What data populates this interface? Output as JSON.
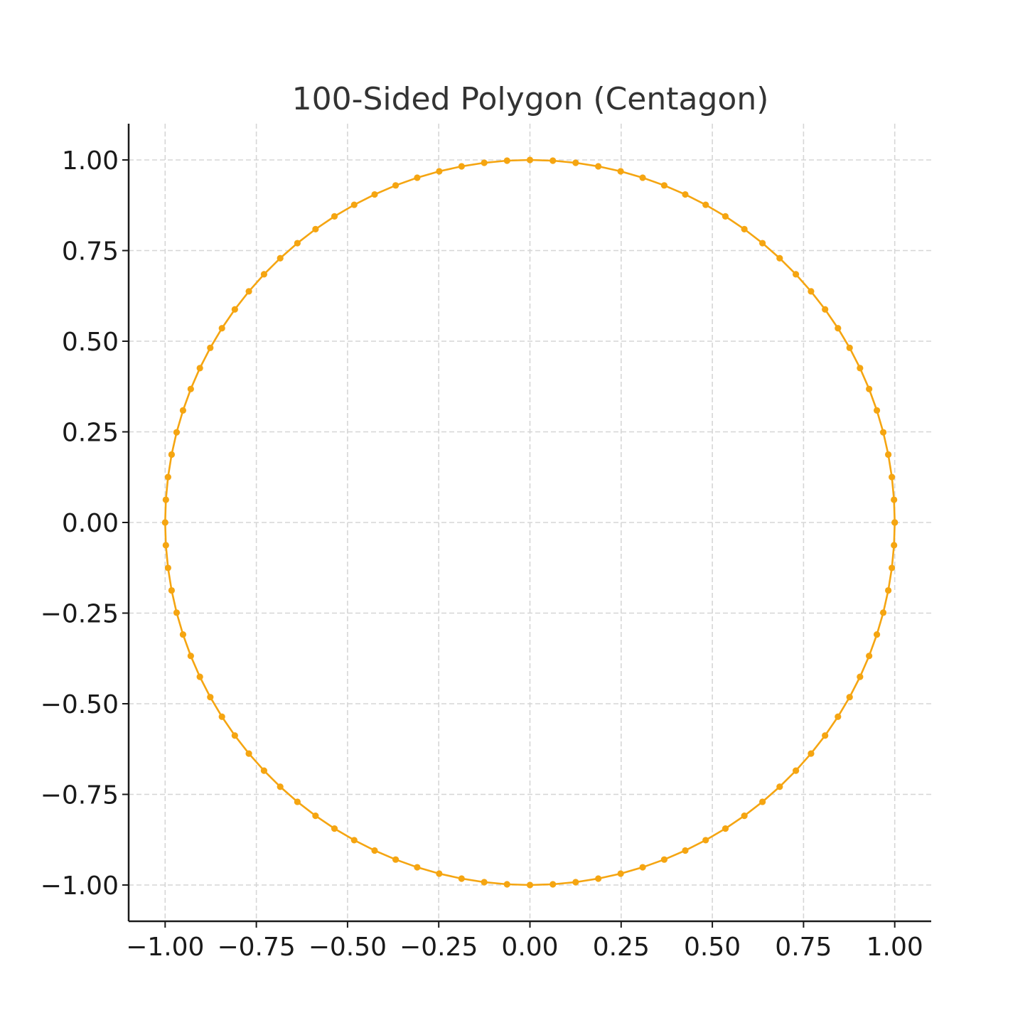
{
  "chart_data": {
    "type": "line",
    "title": "100-Sided Polygon (Centagon)",
    "xlabel": "",
    "ylabel": "",
    "sides": 100,
    "radius": 1.0,
    "xlim": [
      -1.1,
      1.1
    ],
    "ylim": [
      -1.1,
      1.1
    ],
    "xticks": [
      -1.0,
      -0.75,
      -0.5,
      -0.25,
      0.0,
      0.25,
      0.5,
      0.75,
      1.0
    ],
    "yticks": [
      -1.0,
      -0.75,
      -0.5,
      -0.25,
      0.0,
      0.25,
      0.5,
      0.75,
      1.0
    ],
    "xtick_labels": [
      "−1.00",
      "−0.75",
      "−0.50",
      "−0.25",
      "0.00",
      "0.25",
      "0.50",
      "0.75",
      "1.00"
    ],
    "ytick_labels": [
      "−1.00",
      "−0.75",
      "−0.50",
      "−0.25",
      "0.00",
      "0.25",
      "0.50",
      "0.75",
      "1.00"
    ],
    "grid": true,
    "marker": "circle",
    "color": "#f5a511",
    "grid_color": "#d6d6d6",
    "axis_color": "#1a1a1a"
  }
}
